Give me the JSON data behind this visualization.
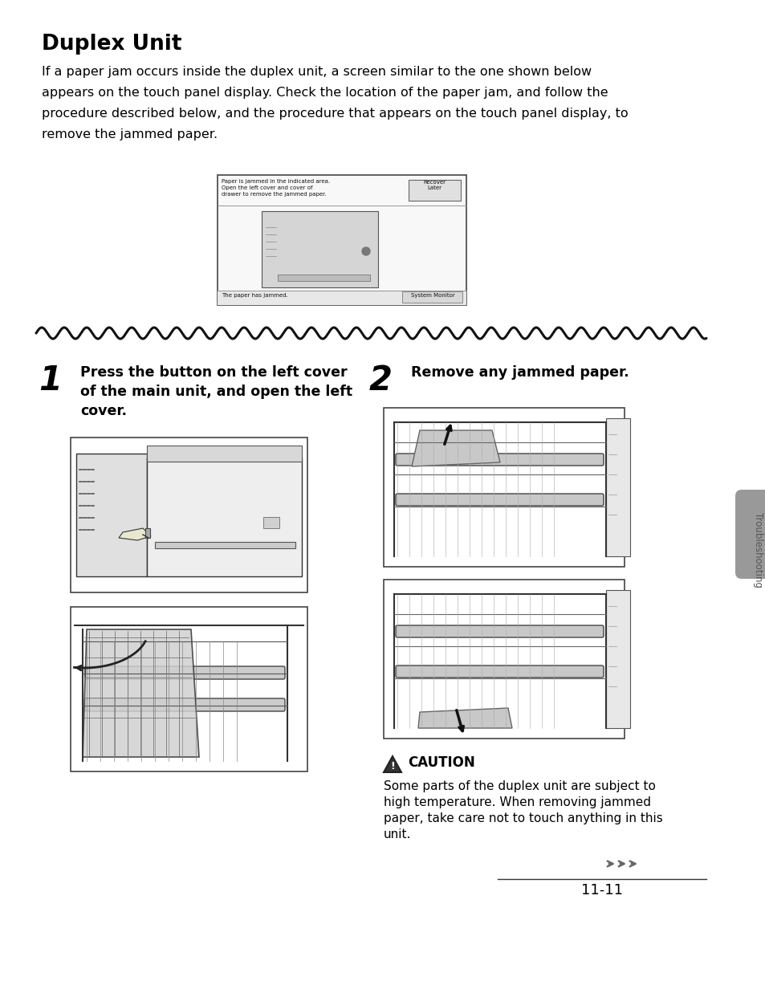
{
  "title": "Duplex Unit",
  "body_text_lines": [
    "If a paper jam occurs inside the duplex unit, a screen similar to the one shown below",
    "appears on the touch panel display. Check the location of the paper jam, and follow the",
    "procedure described below, and the procedure that appears on the touch panel display, to",
    "remove the jammed paper."
  ],
  "step1_number": "1",
  "step1_text_lines": [
    "Press the button on the left cover",
    "of the main unit, and open the left",
    "cover."
  ],
  "step2_number": "2",
  "step2_text": "Remove any jammed paper.",
  "caution_title": "CAUTION",
  "caution_text_lines": [
    "Some parts of the duplex unit are subject to",
    "high temperature. When removing jammed",
    "paper, take care not to touch anything in this",
    "unit."
  ],
  "page_number": "11-11",
  "sidebar_text": "Troubleshooting",
  "bg_color": "#ffffff",
  "text_color": "#000000",
  "sidebar_gray": "#999999"
}
